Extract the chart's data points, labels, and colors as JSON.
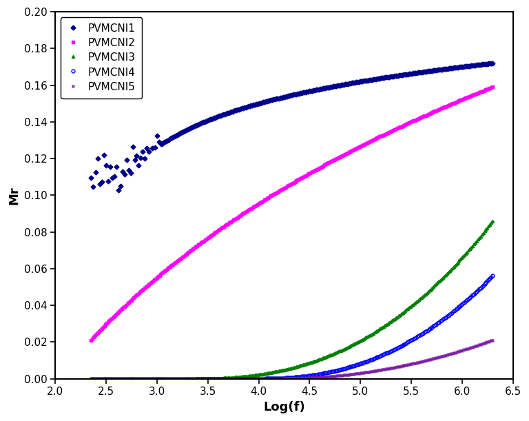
{
  "title": "",
  "xlabel": "Log(f)",
  "ylabel": "Mr",
  "xlim": [
    2.0,
    6.5
  ],
  "ylim": [
    0,
    0.2
  ],
  "yticks": [
    0,
    0.02,
    0.04,
    0.06,
    0.08,
    0.1,
    0.12,
    0.14,
    0.16,
    0.18,
    0.2
  ],
  "xticks": [
    2.0,
    2.5,
    3.0,
    3.5,
    4.0,
    4.5,
    5.0,
    5.5,
    6.0,
    6.5
  ],
  "legend_loc": "upper left",
  "background_color": "#ffffff",
  "figsize": [
    7.68,
    6.11
  ],
  "dpi": 100,
  "series": [
    {
      "label": "PVMCNI1",
      "color": "#00008B",
      "marker": "D",
      "markersize": 3.5,
      "fillstyle": "full",
      "curve_type": "pvmcni1"
    },
    {
      "label": "PVMCNI2",
      "color": "#FF00FF",
      "marker": "s",
      "markersize": 3.0,
      "fillstyle": "full",
      "curve_type": "pvmcni2"
    },
    {
      "label": "PVMCNI3",
      "color": "#008000",
      "marker": "^",
      "markersize": 3.0,
      "fillstyle": "full",
      "curve_type": "pvmcni3"
    },
    {
      "label": "PVMCNI4",
      "color": "#0000FF",
      "marker": "o",
      "markersize": 3.5,
      "fillstyle": "none",
      "curve_type": "pvmcni4"
    },
    {
      "label": "PVMCNI5",
      "color": "#7B1FA2",
      "marker": "x",
      "markersize": 3.0,
      "fillstyle": "full",
      "curve_type": "pvmcni5"
    }
  ]
}
